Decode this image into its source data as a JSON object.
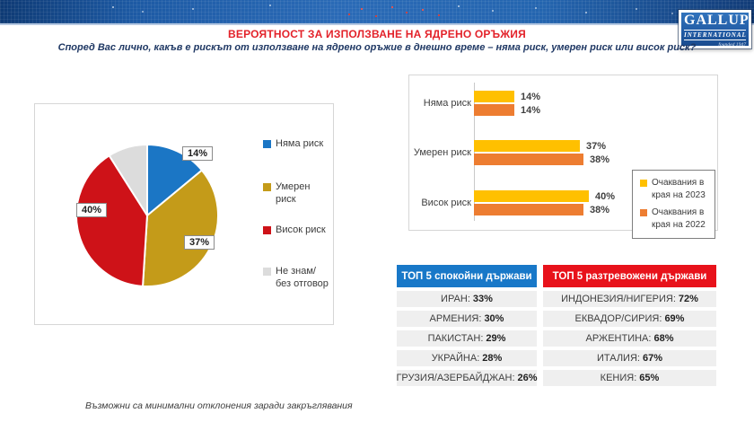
{
  "header": {
    "title": "ВЕРОЯТНОСТ ЗА ИЗПОЛЗВАНЕ НА ЯДРЕНО ОРЪЖИЯ",
    "title_color": "#E3222A",
    "subtitle": "Според Вас лично, какъв е рискът от използване на ядрено оръжие в днешно време – няма риск, умерен риск или висок риск?",
    "banner_color": "#2A6AB6"
  },
  "logo": {
    "line1": "GALLUP",
    "line2": "INTERNATIONAL",
    "line3": "founded 1947"
  },
  "chart_data": [
    {
      "type": "pie",
      "labels": [
        "Няма риск",
        "Умерен риск",
        "Висок риск",
        "Не знам/без отговор"
      ],
      "values": [
        14,
        37,
        40,
        9
      ],
      "value_labels": [
        "14%",
        "37%",
        "40%",
        ""
      ],
      "colors": [
        "#1B76C5",
        "#C49B19",
        "#CE1218",
        "#DCDCDC"
      ],
      "legend_position": "right",
      "start_angle_deg": 0,
      "direction": "clockwise"
    },
    {
      "type": "bar",
      "orientation": "horizontal",
      "categories": [
        "Няма риск",
        "Умерен риск",
        "Висок риск"
      ],
      "series": [
        {
          "name": "Очаквания в края на 2023",
          "color": "#FFC000",
          "values": [
            14,
            37,
            40
          ]
        },
        {
          "name": "Очаквания в края на 2022",
          "color": "#ED7D31",
          "values": [
            14,
            38,
            38
          ]
        }
      ],
      "value_suffix": "%",
      "xlim": [
        0,
        45
      ],
      "grid": false,
      "legend_position": "bottom-right"
    }
  ],
  "tables": [
    {
      "title": "ТОП 5 спокойни държави",
      "header_color": "#1878C8",
      "rows": [
        {
          "label": "ИРАН",
          "value": "33%"
        },
        {
          "label": "АРМЕНИЯ",
          "value": "30%"
        },
        {
          "label": "ПАКИСТАН",
          "value": "29%"
        },
        {
          "label": "УКРАЙНА",
          "value": "28%"
        },
        {
          "label": "ГРУЗИЯ/АЗЕРБАЙДЖАН",
          "value": "26%"
        }
      ]
    },
    {
      "title": "ТОП 5 разтревожени държави",
      "header_color": "#E8121B",
      "rows": [
        {
          "label": "ИНДОНЕЗИЯ/НИГЕРИЯ",
          "value": "72%"
        },
        {
          "label": "ЕКВАДОР/СИРИЯ",
          "value": "69%"
        },
        {
          "label": "АРЖЕНТИНА",
          "value": "68%"
        },
        {
          "label": "ИТАЛИЯ",
          "value": "67%"
        },
        {
          "label": "КЕНИЯ",
          "value": "65%"
        }
      ]
    }
  ],
  "footnote": "Възможни са минимални отклонения заради закръглявания"
}
